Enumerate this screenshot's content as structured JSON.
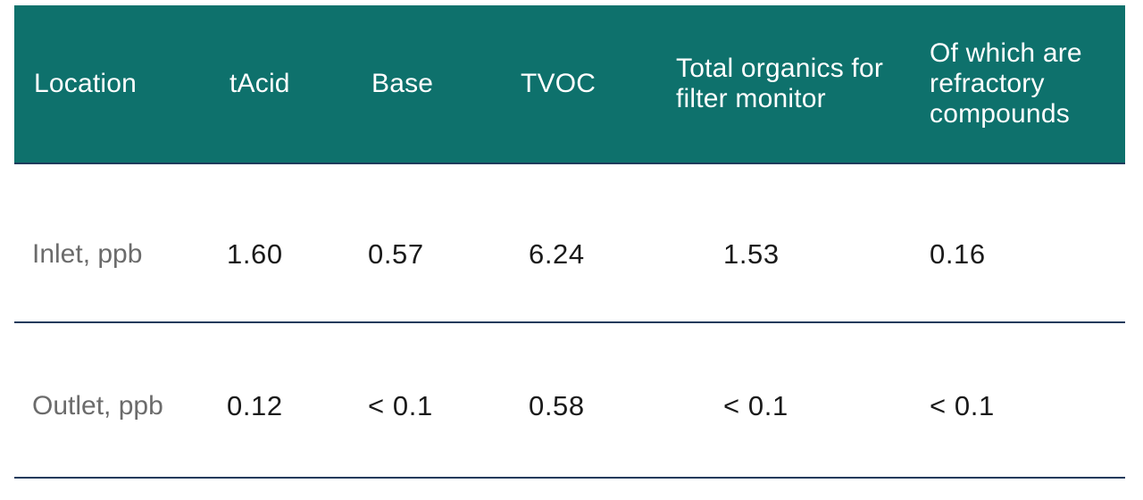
{
  "colors": {
    "header_bg": "#0e716c",
    "accent": "#c8102e",
    "rule": "#1f3b5c"
  },
  "table": {
    "headers": [
      "Location",
      "tAcid",
      "Base",
      "TVOC",
      "Total organics for filter monitor",
      "Of which are refractory compounds"
    ],
    "rows": [
      {
        "label": "Inlet, ppb",
        "values": [
          "1.60",
          "0.57",
          "6.24",
          "1.53",
          "0.16"
        ]
      },
      {
        "label": "Outlet, ppb",
        "values": [
          "0.12",
          "< 0.1",
          "0.58",
          "< 0.1",
          "< 0.1"
        ]
      }
    ]
  }
}
